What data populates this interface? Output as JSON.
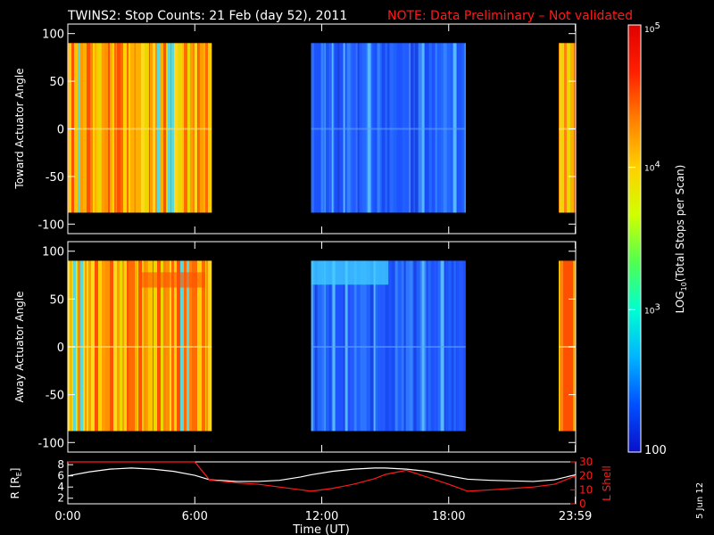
{
  "header": {
    "title": "TWINS2: Stop Counts: 21 Feb (day  52), 2011",
    "note": "NOTE: Data Preliminary – Not validated",
    "note_color": "#ff1a1a"
  },
  "side_date": "5 Jun 12",
  "chart_data": [
    {
      "type": "heatmap",
      "id": "toward",
      "ylabel": "Toward Actuator Angle",
      "ylim": [
        -110,
        110
      ],
      "yticks": [
        100,
        50,
        0,
        -50,
        -100
      ],
      "xlim": [
        0,
        24
      ],
      "y_coverage": [
        -88,
        90
      ],
      "segments": [
        {
          "start": 0.0,
          "end": 6.8,
          "level": "high",
          "note": "orange/yellow/red bands, cyan streaks near 5-6 UT"
        },
        {
          "start": 11.5,
          "end": 18.8,
          "level": "low",
          "note": "blue, lighter cyan streaks near 15-17 UT"
        },
        {
          "start": 23.2,
          "end": 24.0,
          "level": "high",
          "note": "orange/red"
        }
      ]
    },
    {
      "type": "heatmap",
      "id": "away",
      "ylabel": "Away Actuator Angle",
      "ylim": [
        -110,
        110
      ],
      "yticks": [
        100,
        50,
        0,
        -50,
        -100
      ],
      "xlim": [
        0,
        24
      ],
      "y_coverage": [
        -88,
        90
      ],
      "segments": [
        {
          "start": 0.0,
          "end": 6.8,
          "level": "high",
          "note": "yellow/orange bands, red band near +70 at 4-6 UT"
        },
        {
          "start": 11.5,
          "end": 18.8,
          "level": "low",
          "note": "blue, cyan band near +80 at 11.5-15 UT"
        },
        {
          "start": 23.2,
          "end": 24.0,
          "level": "high",
          "note": "orange/red"
        }
      ]
    },
    {
      "type": "line",
      "id": "orbit",
      "x": [
        0.0,
        1.0,
        2.0,
        3.0,
        4.0,
        5.0,
        6.0,
        6.7,
        8.0,
        9.0,
        10.0,
        11.0,
        11.5,
        12.5,
        13.5,
        14.5,
        15.0,
        16.0,
        17.0,
        18.0,
        18.9,
        20.0,
        21.0,
        22.0,
        23.0,
        24.0
      ],
      "ylabel": "R [Rₑ]",
      "ylabel_text": "R [R",
      "ylabel_sub": "E",
      "ylabel_close": "]",
      "ylim": [
        1,
        8.5
      ],
      "yticks": [
        2,
        4,
        6,
        8
      ],
      "y2label": "L Shell",
      "y2lim": [
        0,
        30
      ],
      "y2ticks": [
        0,
        10,
        20,
        30
      ],
      "y2color": "#ff1a1a",
      "series": [
        {
          "axis": "left",
          "color": "#ffffff",
          "values": [
            6.0,
            6.7,
            7.2,
            7.4,
            7.2,
            6.8,
            6.1,
            5.3,
            5.0,
            5.0,
            5.2,
            5.8,
            6.2,
            6.8,
            7.2,
            7.4,
            7.4,
            7.2,
            6.8,
            6.0,
            5.4,
            5.2,
            5.1,
            5.0,
            5.3,
            6.2
          ]
        },
        {
          "axis": "right",
          "color": "#ff1a1a",
          "values": [
            30,
            30,
            30,
            30,
            30,
            30,
            30,
            17,
            15,
            14,
            12,
            10,
            9,
            11,
            14,
            18,
            21,
            24,
            19,
            14,
            9,
            10,
            11,
            12,
            14,
            20
          ]
        }
      ],
      "xticks": [
        {
          "value": 0,
          "label": "0:00"
        },
        {
          "value": 6,
          "label": "6:00"
        },
        {
          "value": 12,
          "label": "12:00"
        },
        {
          "value": 18,
          "label": "18:00"
        },
        {
          "value": 23.983,
          "label": "23:59"
        }
      ],
      "xlabel": "Time (UT)"
    },
    {
      "type": "colorbar",
      "id": "colorbar",
      "scale": "log",
      "range": [
        100,
        100000
      ],
      "tick_labels": [
        {
          "value": 100000,
          "base": "10",
          "exp": "5"
        },
        {
          "value": 10000,
          "base": "10",
          "exp": "4"
        },
        {
          "value": 1000,
          "base": "10",
          "exp": "3"
        },
        {
          "value": 100,
          "base": "100",
          "exp": ""
        }
      ],
      "label_pre": "LOG",
      "label_sub": "10",
      "label_post": "(Total Stops per Scan)",
      "colors": [
        "#0a10c8",
        "#0050ff",
        "#00b4ff",
        "#00ffd0",
        "#50ff50",
        "#d0ff00",
        "#ffd000",
        "#ff8000",
        "#ff2000",
        "#e00000"
      ]
    }
  ]
}
